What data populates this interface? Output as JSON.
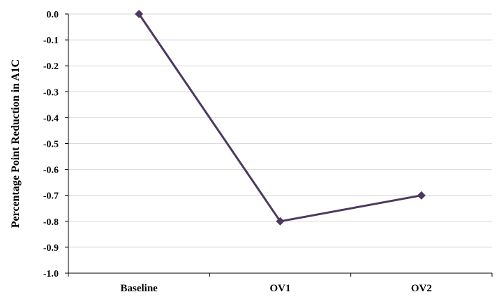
{
  "chart_data": {
    "type": "line",
    "title": "",
    "xlabel": "",
    "ylabel": "Percentage Point Reduction in A1C",
    "categories": [
      "Baseline",
      "OV1",
      "OV2"
    ],
    "series": [
      {
        "values": [
          0.0,
          -0.8,
          -0.7
        ]
      }
    ],
    "ylim": [
      -1.0,
      0.0
    ],
    "y_ticks": [
      "0.0",
      "-0.1",
      "-0.2",
      "-0.3",
      "-0.4",
      "-0.5",
      "-0.6",
      "-0.7",
      "-0.8",
      "-0.9",
      "-1.0"
    ],
    "grid": true,
    "legend": "none",
    "line_color": "#4b3a5f",
    "marker_color": "#4b3a5f",
    "marker": "diamond",
    "grid_color": "#d9d9d9",
    "axis_color": "#000000"
  }
}
